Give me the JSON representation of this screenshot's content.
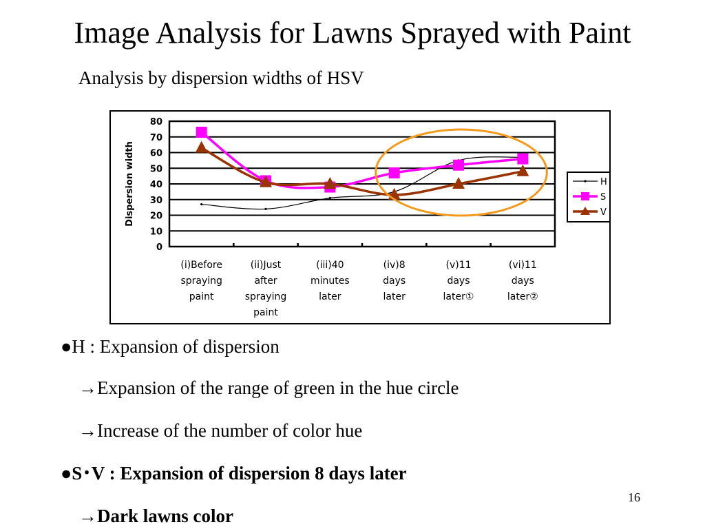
{
  "slide": {
    "title": "Image Analysis for Lawns Sprayed with Paint",
    "subtitle": "Analysis by dispersion widths of HSV",
    "page_number": "16"
  },
  "bullets": [
    {
      "text": "●H : Expansion of dispersion",
      "bold": false
    },
    {
      "text": "→Expansion of the range of green in the hue circle",
      "bold": false
    },
    {
      "text": "→Increase of the number of color hue",
      "bold": false
    },
    {
      "text": "●S･V : Expansion of dispersion 8 days later",
      "bold": true
    },
    {
      "text": "→Dark lawns color",
      "bold": true
    }
  ],
  "chart_data": {
    "type": "line",
    "title": "",
    "xlabel": "",
    "ylabel": "Dispersion width",
    "ylim": [
      0,
      80
    ],
    "yticks": [
      "0",
      "10",
      "20",
      "30",
      "40",
      "50",
      "60",
      "70",
      "80"
    ],
    "grid": true,
    "legend": "right",
    "categories": [
      [
        "(i)Before",
        "spraying",
        "paint"
      ],
      [
        "(ii)Just",
        "after",
        "spraying",
        "paint"
      ],
      [
        "(iii)40",
        "minutes",
        "later"
      ],
      [
        "(iv)8",
        "days",
        "later"
      ],
      [
        "(v)11",
        "days",
        "later①"
      ],
      [
        "(vi)11",
        "days",
        "later②"
      ]
    ],
    "series": [
      {
        "name": "H",
        "values": [
          27,
          24,
          31,
          35,
          55,
          57
        ],
        "color": "#000000",
        "marker": "dot"
      },
      {
        "name": "S",
        "values": [
          73,
          42,
          38,
          47,
          52,
          56
        ],
        "color": "#ff00ff",
        "marker": "square"
      },
      {
        "name": "V",
        "values": [
          63,
          41,
          40,
          33,
          40,
          48
        ],
        "color": "#993300",
        "marker": "triangle"
      }
    ],
    "annotation": {
      "type": "ellipse",
      "color": "#f39a1d",
      "highlights_categories": [
        3,
        4,
        5
      ]
    }
  }
}
